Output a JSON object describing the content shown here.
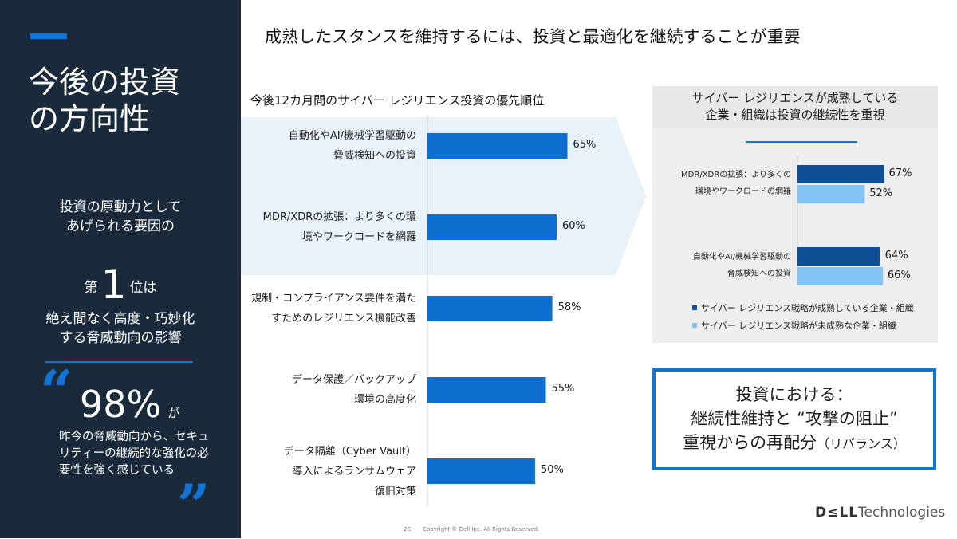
{
  "sidebar": {
    "title_line1": "今後の投資",
    "title_line2": "の方向性",
    "intro_line1": "投資の原動力として",
    "intro_line2": "あげられる要因の",
    "rank_prefix": "第",
    "rank_number": "1",
    "rank_suffix": "位は",
    "factor_line1": "絶え間なく高度・巧妙化",
    "factor_line2": "する脅威動向の影響",
    "quote_open": "“",
    "quote_close": "”",
    "stat_value": "98%",
    "stat_suffix": "が",
    "stat_desc": "昨今の脅威動向から、セキュリティーの継続的な強化の必要性を強く感じている"
  },
  "header": {
    "title": "成熟したスタンスを維持するには、投資と最適化を継続することが重要"
  },
  "chart_data": [
    {
      "type": "bar",
      "orientation": "horizontal",
      "title": "今後12カ月間のサイバー レジリエンス投資の優先順位",
      "categories": [
        [
          "自動化やAI/機械学習駆動の",
          "脅威検知への投資"
        ],
        [
          "MDR/XDRの拡張：より多くの環",
          "境やワークロードを網羅"
        ],
        [
          "規制・コンプライアンス要件を満た",
          "すためのレジリエンス機能改善"
        ],
        [
          "データ保護／バックアップ",
          "環境の高度化"
        ],
        [
          "データ隔離（Cyber Vault）",
          "導入によるランサムウェア",
          "復旧対策"
        ]
      ],
      "values": [
        65,
        60,
        58,
        55,
        50
      ],
      "value_labels": [
        "65%",
        "60%",
        "58%",
        "55%",
        "50%"
      ],
      "xlim": [
        0,
        100
      ],
      "highlighted_rows": 2,
      "bar_color": "#0f6fd0",
      "highlight_color": "#e9f1f9"
    },
    {
      "type": "bar",
      "orientation": "horizontal",
      "title": "サイバー レジリエンスが成熟している企業・組織は投資の継続性を重視",
      "categories": [
        [
          "MDR/XDRの拡張：より多くの",
          "環境やワークロードの網羅"
        ],
        [
          "自動化やAI/機械学習駆動の",
          "脅威検知への投資"
        ]
      ],
      "series": [
        {
          "name": "サイバー レジリエンス戦略が成熟している企業・組織",
          "values": [
            67,
            64
          ],
          "labels": [
            "67%",
            "64%"
          ],
          "color": "#0e4f96"
        },
        {
          "name": "サイバー レジリエンス戦略が未成熟な企業・組織",
          "values": [
            52,
            66
          ],
          "labels": [
            "52%",
            "66%"
          ],
          "color": "#84c4f5"
        }
      ],
      "xlim": [
        0,
        100
      ]
    }
  ],
  "callout": {
    "line1": "投資における：",
    "line2": "継続性維持と “攻撃の阻止”",
    "line3": "重視からの再配分",
    "note": "（リバランス）"
  },
  "footer": {
    "page": "28",
    "copyright": "Copyright © Dell Inc. All Rights Reserved.",
    "logo_dell": "D≤LL",
    "logo_tech": "Technologies"
  },
  "colors": {
    "sidebar_bg": "#1b2a3b",
    "accent": "#1275d6"
  }
}
